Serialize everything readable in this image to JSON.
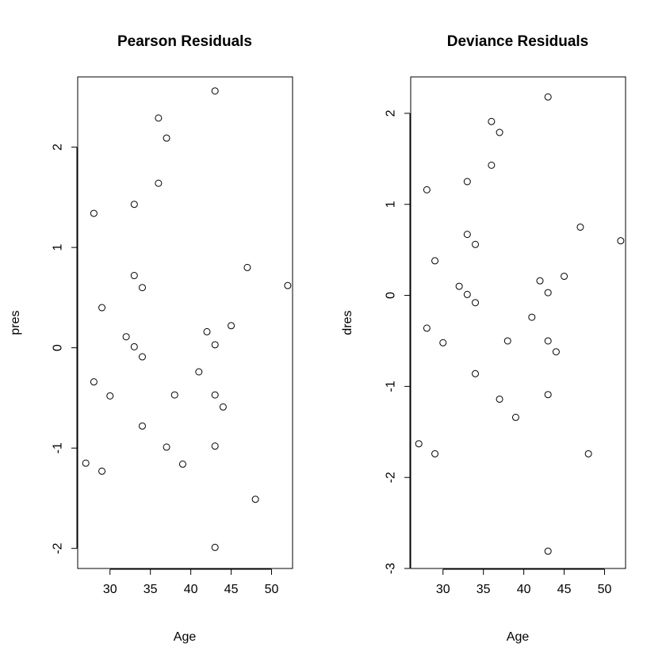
{
  "chart_data": [
    {
      "type": "scatter",
      "title": "Pearson Residuals",
      "xlabel": "Age",
      "ylabel": "pres",
      "xlim": [
        26.0,
        52.6
      ],
      "ylim": [
        -2.2,
        2.7
      ],
      "xticks": [
        30,
        35,
        40,
        45,
        50
      ],
      "yticks": [
        -2,
        -1,
        0,
        1,
        2
      ],
      "x": [
        27,
        28,
        28,
        29,
        29,
        30,
        32,
        33,
        33,
        33,
        34,
        34,
        34,
        36,
        36,
        37,
        37,
        38,
        39,
        41,
        42,
        43,
        43,
        43,
        43,
        43,
        44,
        45,
        47,
        48,
        52
      ],
      "y": [
        -1.15,
        1.34,
        -0.34,
        0.4,
        -1.23,
        -0.48,
        0.11,
        1.43,
        0.72,
        0.01,
        0.6,
        -0.09,
        -0.78,
        2.29,
        1.64,
        2.09,
        -0.99,
        -0.47,
        -1.16,
        -0.24,
        0.16,
        2.56,
        0.03,
        -0.47,
        -0.98,
        -1.99,
        -0.59,
        0.22,
        0.8,
        -1.51,
        0.62
      ]
    },
    {
      "type": "scatter",
      "title": "Deviance Residuals",
      "xlabel": "Age",
      "ylabel": "dres",
      "xlim": [
        26.0,
        52.6
      ],
      "ylim": [
        -3.0,
        2.4
      ],
      "xticks": [
        30,
        35,
        40,
        45,
        50
      ],
      "yticks": [
        -3,
        -2,
        -1,
        0,
        1,
        2
      ],
      "x": [
        27,
        28,
        28,
        29,
        29,
        30,
        32,
        33,
        33,
        33,
        34,
        34,
        34,
        36,
        36,
        37,
        37,
        38,
        39,
        41,
        42,
        43,
        43,
        43,
        43,
        43,
        44,
        45,
        47,
        48,
        52
      ],
      "y": [
        -1.63,
        1.16,
        -0.36,
        0.38,
        -1.74,
        -0.52,
        0.1,
        1.25,
        0.67,
        0.01,
        0.56,
        -0.08,
        -0.86,
        1.91,
        1.43,
        1.79,
        -1.14,
        -0.5,
        -1.34,
        -0.24,
        0.16,
        2.18,
        0.03,
        -0.5,
        -1.09,
        -2.81,
        -0.62,
        0.21,
        0.75,
        -1.74,
        0.6
      ]
    }
  ]
}
